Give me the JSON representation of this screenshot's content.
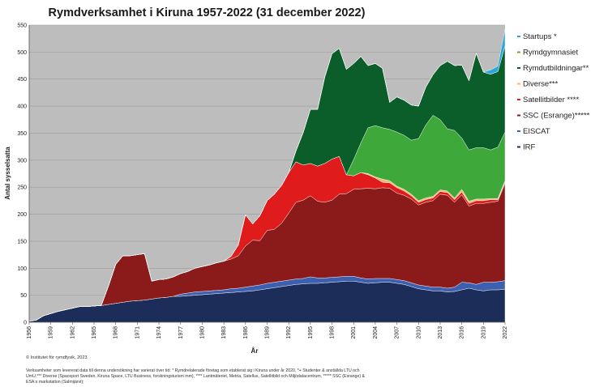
{
  "chart_data": {
    "type": "area",
    "stacked": true,
    "title": "Rymdverksamhet i Kiruna 1957-2022 (31 december 2022)",
    "xlabel": "År",
    "ylabel": "Antal sysselsatta",
    "ylim": [
      0,
      550
    ],
    "yticks": [
      0,
      50,
      100,
      150,
      200,
      250,
      300,
      350,
      400,
      450,
      500,
      550
    ],
    "xlim": [
      1956,
      2022
    ],
    "xticks": [
      1956,
      1959,
      1962,
      1965,
      1968,
      1971,
      1974,
      1977,
      1980,
      1983,
      1986,
      1989,
      1992,
      1995,
      1998,
      2001,
      2004,
      2007,
      2010,
      2013,
      2016,
      2019,
      2022
    ],
    "grid": "horizontal",
    "plot_background": "#bdbdbd",
    "legend_position": "right",
    "legend_order": [
      7,
      6,
      5,
      4,
      3,
      2,
      1,
      0
    ],
    "years": [
      1956,
      1957,
      1958,
      1959,
      1960,
      1961,
      1962,
      1963,
      1964,
      1965,
      1966,
      1967,
      1968,
      1969,
      1970,
      1971,
      1972,
      1973,
      1974,
      1975,
      1976,
      1977,
      1978,
      1979,
      1980,
      1981,
      1982,
      1983,
      1984,
      1985,
      1986,
      1987,
      1988,
      1989,
      1990,
      1991,
      1992,
      1993,
      1994,
      1995,
      1996,
      1997,
      1998,
      1999,
      2000,
      2001,
      2002,
      2003,
      2004,
      2005,
      2006,
      2007,
      2008,
      2009,
      2010,
      2011,
      2012,
      2013,
      2014,
      2015,
      2016,
      2017,
      2018,
      2019,
      2020,
      2021,
      2022
    ],
    "series": [
      {
        "name": "IRF",
        "color": "#1b2d58",
        "values": [
          2,
          4,
          12,
          16,
          20,
          23,
          26,
          29,
          29,
          30,
          31,
          33,
          35,
          37,
          39,
          40,
          41,
          43,
          45,
          46,
          48,
          48,
          49,
          50,
          51,
          52,
          53,
          54,
          55,
          56,
          57,
          58,
          60,
          62,
          64,
          66,
          68,
          70,
          71,
          72,
          72,
          73,
          74,
          75,
          76,
          76,
          74,
          72,
          73,
          74,
          74,
          72,
          70,
          66,
          62,
          60,
          58,
          58,
          56,
          57,
          60,
          63,
          60,
          58,
          60,
          60,
          61
        ]
      },
      {
        "name": "EISCAT",
        "color": "#3d5fb0",
        "values": [
          0,
          0,
          0,
          0,
          0,
          0,
          0,
          0,
          0,
          0,
          0,
          0,
          0,
          0,
          0,
          0,
          0,
          0,
          0,
          0,
          0,
          4,
          5,
          6,
          6,
          6,
          6,
          6,
          7,
          7,
          8,
          9,
          9,
          10,
          10,
          10,
          10,
          10,
          10,
          12,
          10,
          9,
          9,
          9,
          9,
          9,
          8,
          8,
          8,
          7,
          7,
          7,
          7,
          7,
          7,
          7,
          7,
          7,
          7,
          8,
          14,
          10,
          10,
          16,
          14,
          15,
          16
        ]
      },
      {
        "name": "SSC (Esrange)*****",
        "color": "#8b1a1a",
        "values": [
          0,
          0,
          0,
          0,
          0,
          0,
          0,
          0,
          0,
          0,
          0,
          34,
          72,
          86,
          84,
          85,
          86,
          33,
          34,
          34,
          36,
          38,
          40,
          44,
          46,
          48,
          51,
          53,
          55,
          60,
          76,
          85,
          82,
          98,
          98,
          107,
          124,
          142,
          145,
          150,
          142,
          140,
          143,
          153,
          153,
          161,
          165,
          168,
          166,
          168,
          167,
          160,
          158,
          155,
          148,
          155,
          160,
          172,
          172,
          157,
          162,
          142,
          150,
          146,
          148,
          149,
          180
        ]
      },
      {
        "name": "Satellitbilder ****",
        "color": "#e01b1b",
        "values": [
          0,
          0,
          0,
          0,
          0,
          0,
          0,
          0,
          0,
          0,
          0,
          0,
          0,
          0,
          0,
          0,
          0,
          0,
          0,
          0,
          0,
          0,
          0,
          0,
          0,
          0,
          0,
          0,
          5,
          20,
          58,
          30,
          46,
          55,
          65,
          70,
          75,
          75,
          65,
          60,
          65,
          72,
          76,
          70,
          35,
          25,
          30,
          25,
          20,
          10,
          10,
          10,
          8,
          6,
          5,
          5,
          5,
          5,
          5,
          5,
          5,
          5,
          5,
          5,
          5,
          3,
          3
        ]
      },
      {
        "name": "Diverse***",
        "color": "#f5b971",
        "values": [
          0,
          0,
          0,
          0,
          0,
          0,
          0,
          0,
          0,
          0,
          0,
          0,
          0,
          0,
          0,
          0,
          0,
          0,
          0,
          0,
          0,
          0,
          0,
          0,
          0,
          0,
          0,
          0,
          0,
          0,
          0,
          0,
          0,
          0,
          0,
          0,
          0,
          0,
          0,
          0,
          0,
          0,
          0,
          0,
          0,
          0,
          0,
          2,
          2,
          6,
          4,
          3,
          3,
          3,
          3,
          3,
          3,
          3,
          3,
          3,
          5,
          4,
          3,
          3,
          2,
          2,
          2
        ]
      },
      {
        "name": "Rymdutbildningar**",
        "color": "#0b5e2a",
        "values": [
          0,
          0,
          0,
          0,
          0,
          0,
          0,
          0,
          0,
          0,
          0,
          0,
          0,
          0,
          0,
          0,
          0,
          0,
          0,
          0,
          0,
          0,
          0,
          0,
          0,
          0,
          0,
          0,
          0,
          0,
          0,
          0,
          0,
          0,
          0,
          0,
          0,
          20,
          60,
          100,
          105,
          160,
          195,
          200,
          195,
          178,
          160,
          115,
          115,
          110,
          50,
          65,
          65,
          65,
          60,
          70,
          75,
          100,
          125,
          120,
          135,
          128,
          175,
          140,
          140,
          140,
          160
        ]
      },
      {
        "name": "Rymdgymnasiet",
        "color": "#7fa132",
        "values": [
          0,
          0,
          0,
          0,
          0,
          0,
          0,
          0,
          0,
          0,
          0,
          0,
          0,
          0,
          0,
          0,
          0,
          0,
          0,
          0,
          0,
          0,
          0,
          0,
          0,
          0,
          0,
          0,
          0,
          0,
          0,
          0,
          0,
          0,
          0,
          0,
          0,
          0,
          0,
          0,
          0,
          0,
          0,
          0,
          0,
          0,
          0,
          0,
          0,
          0,
          0,
          0,
          0,
          0,
          0,
          0,
          0,
          0,
          0,
          0,
          0,
          0,
          0,
          0,
          0,
          0,
          0
        ]
      },
      {
        "name": "Startups *",
        "color": "#2aa7d9",
        "values": [
          0,
          0,
          0,
          0,
          0,
          0,
          0,
          0,
          0,
          0,
          0,
          0,
          0,
          0,
          0,
          0,
          0,
          0,
          0,
          0,
          0,
          0,
          0,
          0,
          0,
          0,
          0,
          0,
          0,
          0,
          0,
          0,
          0,
          0,
          0,
          0,
          0,
          0,
          0,
          0,
          0,
          0,
          0,
          0,
          0,
          0,
          0,
          0,
          0,
          0,
          0,
          0,
          0,
          0,
          0,
          0,
          0,
          0,
          0,
          0,
          0,
          0,
          0,
          0,
          8,
          10,
          30
        ]
      }
    ],
    "extra_area": {
      "color": "#3ea83a",
      "values": [
        0,
        0,
        0,
        0,
        0,
        0,
        0,
        0,
        0,
        0,
        0,
        0,
        0,
        0,
        0,
        0,
        0,
        0,
        0,
        0,
        0,
        0,
        0,
        0,
        0,
        0,
        0,
        0,
        0,
        0,
        0,
        0,
        0,
        0,
        0,
        0,
        0,
        0,
        0,
        0,
        0,
        0,
        0,
        0,
        0,
        30,
        55,
        85,
        95,
        95,
        95,
        100,
        100,
        100,
        115,
        135,
        150,
        130,
        115,
        125,
        95,
        95,
        95,
        95,
        90,
        95,
        90
      ]
    },
    "copyright": "© Institutet för rymdfysik, 2023",
    "note": "Verksamheter som levererat data till denna undersökning har varierat över tid: * Rymdrelaterade företag som etablerat sig i Kiruna under år 2020, *+ Studenter & anställda LTU och UmU,*** Diverse (Spaceport Sweden, Kiruna Space, LTU Business, forskningsturism mm), **** Lantmäteriet, Metria, Satellus, Satellitbild och Miljödatacentrum, ***** SSC (Esrange) & ESA:s markstation (Salmijärvi);"
  }
}
